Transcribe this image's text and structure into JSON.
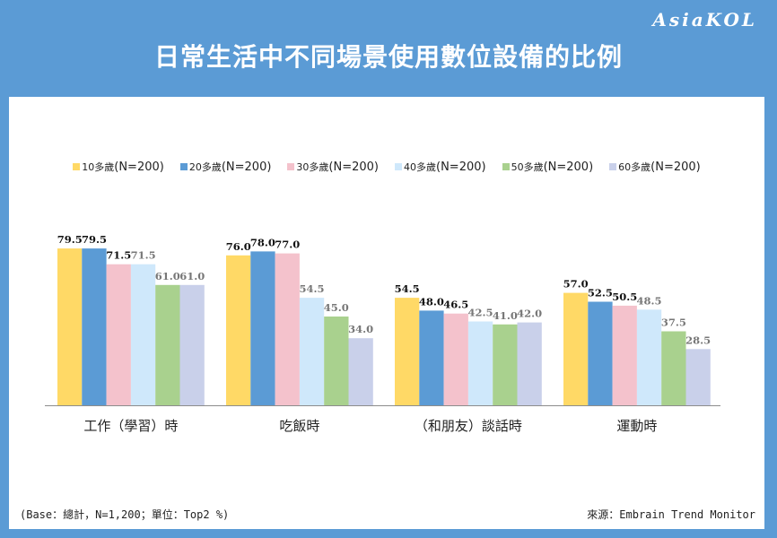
{
  "brand": "AsiaKOL",
  "title": "日常生活中不同場景使用數位設備的比例",
  "footer": {
    "base": "(Base：總計，N=1,200；單位：Top2 %)",
    "source": "來源：Embrain Trend Monitor"
  },
  "chart_data": {
    "type": "bar",
    "title": "日常生活中不同場景使用數位設備的比例",
    "categories": [
      "工作（學習）時",
      "吃飯時",
      "（和朋友）談話時",
      "運動時"
    ],
    "series": [
      {
        "name": "10多歲(N=200)",
        "color": "#ffd966",
        "values": [
          79.5,
          76.0,
          54.5,
          57.0
        ]
      },
      {
        "name": "20多歲(N=200)",
        "color": "#5b9bd5",
        "values": [
          79.5,
          78.0,
          48.0,
          52.5
        ]
      },
      {
        "name": "30多歲(N=200)",
        "color": "#f4c2cc",
        "values": [
          71.5,
          77.0,
          46.5,
          50.5
        ]
      },
      {
        "name": "40多歲(N=200)",
        "color": "#cfe8fb",
        "values": [
          71.5,
          54.5,
          42.5,
          48.5
        ]
      },
      {
        "name": "50多歲(N=200)",
        "color": "#a9d18e",
        "values": [
          61.0,
          45.0,
          41.0,
          37.5
        ]
      },
      {
        "name": "60多歲(N=200)",
        "color": "#c9d0ea",
        "values": [
          61.0,
          34.0,
          42.0,
          28.5
        ]
      }
    ],
    "label_colors": [
      "#111111",
      "#111111",
      "#111111",
      "#777777",
      "#777777",
      "#777777"
    ],
    "ylim": [
      0,
      100
    ],
    "legend": "top",
    "grid": false
  }
}
